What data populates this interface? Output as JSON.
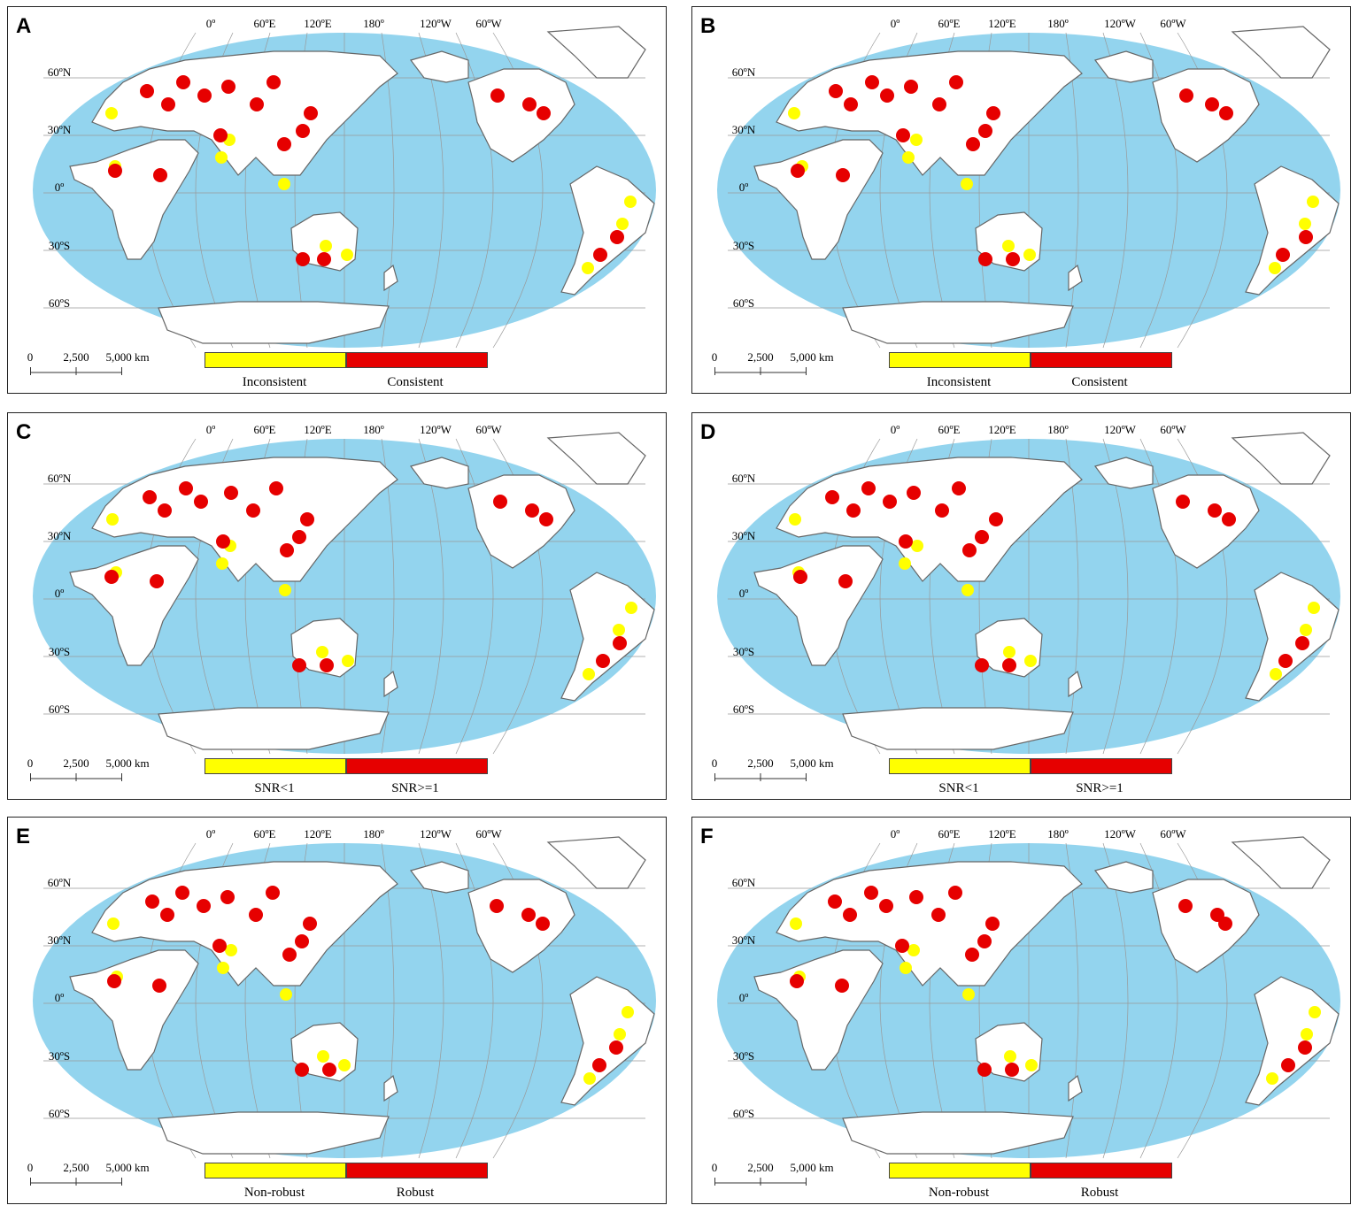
{
  "panels": [
    {
      "label": "A",
      "legend": {
        "left": "Inconsistent",
        "right": "Consistent"
      }
    },
    {
      "label": "B",
      "legend": {
        "left": "Inconsistent",
        "right": "Consistent"
      }
    },
    {
      "label": "C",
      "legend": {
        "left": "SNR<1",
        "right": "SNR>=1"
      }
    },
    {
      "label": "D",
      "legend": {
        "left": "SNR<1",
        "right": "SNR>=1"
      }
    },
    {
      "label": "E",
      "legend": {
        "left": "Non-robust",
        "right": "Robust"
      }
    },
    {
      "label": "F",
      "legend": {
        "left": "Non-robust",
        "right": "Robust"
      }
    }
  ],
  "longitude_labels": [
    "0º",
    "60ºE",
    "120ºE",
    "180º",
    "120ºW",
    "60ºW"
  ],
  "latitude_labels": [
    "60ºN",
    "30ºN",
    "0º",
    "30ºS",
    "60ºS"
  ],
  "scale": {
    "zero": "0",
    "mid": "2,500",
    "end": "5,000 km"
  },
  "colors": {
    "ocean": "#93d4ee",
    "land": "#ffffff",
    "border": "#666666",
    "yellow": "#ffff00",
    "red": "#e60000"
  }
}
